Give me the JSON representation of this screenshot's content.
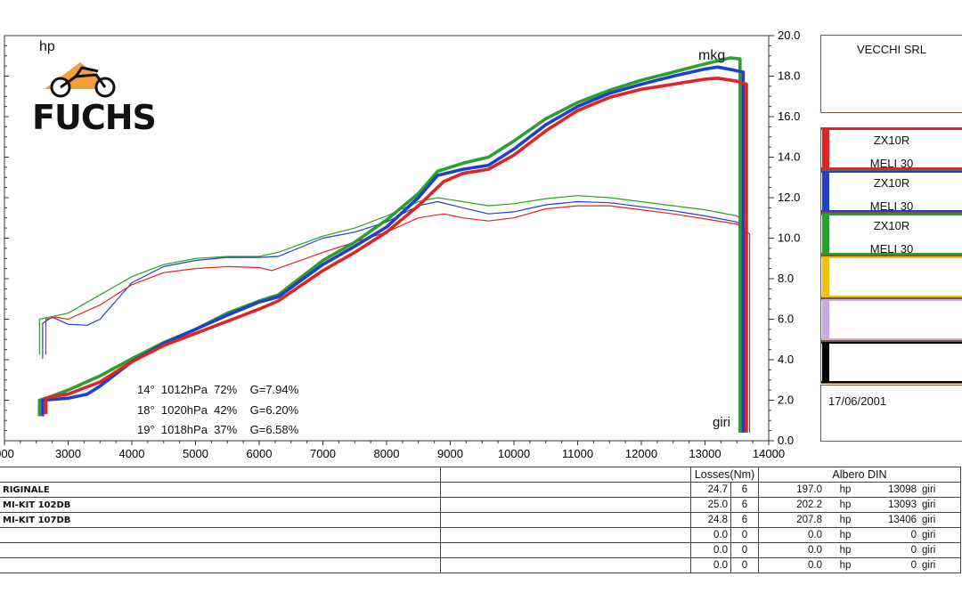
{
  "labels": {
    "left_unit": "hp",
    "right_unit": "mkg",
    "rpm_unit": "giri"
  },
  "logo": {
    "text": "FUCHS"
  },
  "conditions": [
    {
      "text": "14°  1012hPa  72%    G=7.94%",
      "color": "#e02424"
    },
    {
      "text": "18°  1020hPa  42%    G=6.20%",
      "color": "#1f3fd0"
    },
    {
      "text": "19°  1018hPa  37%    G=6.58%",
      "color": "#2aa02a"
    }
  ],
  "legend_panel": {
    "company": "VECCHI SRL",
    "runs": [
      {
        "line1": "ZX10R",
        "line2": "MELI 30",
        "color": "#e02424"
      },
      {
        "line1": "ZX10R",
        "line2": "MELI 30",
        "color": "#1f3fd0"
      },
      {
        "line1": "ZX10R",
        "line2": "MELI 30",
        "color": "#2aa02a"
      },
      {
        "line1": "",
        "line2": "",
        "color": "#f2c200"
      },
      {
        "line1": "",
        "line2": "",
        "color": "#c8a8e8"
      },
      {
        "line1": "",
        "line2": "",
        "color": "#000000"
      }
    ],
    "date": "17/06/2001"
  },
  "results_table": {
    "losses_header": "Losses(Nm)",
    "power_header": "Albero DIN",
    "unit_hp": "hp",
    "unit_rpm": "giri",
    "rows": [
      {
        "name": "RIGINALE",
        "loss": "24.7",
        "n": "6",
        "power": "197.0",
        "rpm": "13098"
      },
      {
        "name": "MI-KIT 102DB",
        "loss": "25.0",
        "n": "6",
        "power": "202.2",
        "rpm": "13093"
      },
      {
        "name": "MI-KIT 107DB",
        "loss": "24.8",
        "n": "6",
        "power": "207.8",
        "rpm": "13406"
      },
      {
        "name": "",
        "loss": "0.0",
        "n": "0",
        "power": "0.0",
        "rpm": "0"
      },
      {
        "name": "",
        "loss": "0.0",
        "n": "0",
        "power": "0.0",
        "rpm": "0"
      },
      {
        "name": "",
        "loss": "0.0",
        "n": "0",
        "power": "0.0",
        "rpm": "0"
      }
    ]
  },
  "chart_data": {
    "type": "line",
    "xlabel": "giri",
    "ylabel_right": "mkg",
    "ylabel_left": "hp",
    "xlim": [
      2000,
      14000
    ],
    "xticks": [
      "000",
      "3000",
      "4000",
      "5000",
      "6000",
      "7000",
      "8000",
      "9000",
      "10000",
      "11000",
      "12000",
      "13000",
      "14000"
    ],
    "ylim_right": [
      0,
      20
    ],
    "yticks_right": [
      "0.0",
      "2.0",
      "4.0",
      "6.0",
      "8.0",
      "10.0",
      "12.0",
      "14.0",
      "16.0",
      "18.0",
      "20.0"
    ],
    "grid": false,
    "series": [
      {
        "quantity": "power",
        "color": "#2aa02a",
        "x": [
          2550,
          2700,
          3000,
          3500,
          4000,
          4500,
          5000,
          5500,
          6000,
          6300,
          7000,
          7500,
          8000,
          8500,
          8800,
          9200,
          9600,
          10000,
          10500,
          11000,
          11500,
          12000,
          12500,
          13000,
          13500,
          13580
        ],
        "y": [
          6.0,
          6.1,
          6.3,
          7.2,
          8.1,
          8.7,
          9.0,
          9.1,
          9.1,
          9.3,
          10.1,
          10.5,
          11.1,
          11.8,
          12.0,
          11.8,
          11.6,
          11.7,
          11.95,
          12.1,
          12.0,
          11.8,
          11.6,
          11.4,
          11.1,
          10.9
        ]
      },
      {
        "quantity": "power",
        "color": "#1f3fd0",
        "x": [
          2600,
          2750,
          3000,
          3300,
          3500,
          4000,
          4500,
          5000,
          5500,
          6000,
          6300,
          7000,
          7500,
          8000,
          8500,
          8800,
          9200,
          9600,
          10000,
          10500,
          11000,
          11500,
          12000,
          12500,
          13000,
          13500,
          13620
        ],
        "y": [
          5.8,
          6.1,
          5.75,
          5.7,
          6.0,
          7.8,
          8.6,
          8.9,
          9.05,
          9.05,
          9.1,
          10.0,
          10.3,
          10.8,
          11.6,
          11.8,
          11.5,
          11.2,
          11.3,
          11.65,
          11.8,
          11.75,
          11.55,
          11.35,
          11.1,
          10.8,
          10.5
        ]
      },
      {
        "quantity": "power",
        "color": "#e02424",
        "x": [
          2650,
          2800,
          3000,
          3500,
          4000,
          4500,
          5000,
          5500,
          6000,
          6200,
          7000,
          7500,
          8000,
          8500,
          8900,
          9200,
          9600,
          10000,
          10500,
          11000,
          11500,
          12000,
          12500,
          13000,
          13500,
          13700
        ],
        "y": [
          6.0,
          6.1,
          6.0,
          6.7,
          7.7,
          8.3,
          8.5,
          8.6,
          8.55,
          8.4,
          9.3,
          9.8,
          10.3,
          11.0,
          11.2,
          11.0,
          10.85,
          11.0,
          11.45,
          11.6,
          11.6,
          11.4,
          11.2,
          10.95,
          10.7,
          10.2
        ]
      },
      {
        "quantity": "torque",
        "color": "#2aa02a",
        "x": [
          2550,
          2700,
          3000,
          3500,
          4000,
          4500,
          5000,
          5500,
          6000,
          6300,
          7000,
          7500,
          8000,
          8500,
          8800,
          9200,
          9600,
          10000,
          10500,
          11000,
          11500,
          12000,
          12500,
          13000,
          13400,
          13550
        ],
        "y": [
          2.0,
          2.15,
          2.5,
          3.2,
          4.05,
          4.85,
          5.5,
          6.3,
          6.9,
          7.2,
          8.9,
          9.8,
          10.9,
          12.2,
          13.3,
          13.7,
          14.0,
          14.8,
          15.9,
          16.7,
          17.3,
          17.8,
          18.2,
          18.6,
          18.9,
          18.85
        ]
      },
      {
        "quantity": "torque",
        "color": "#1f3fd0",
        "x": [
          2600,
          3000,
          3300,
          3500,
          4000,
          4500,
          5000,
          5500,
          6000,
          6300,
          7000,
          7500,
          8000,
          8500,
          8800,
          9200,
          9600,
          10000,
          10500,
          11000,
          11500,
          12000,
          12500,
          13000,
          13200,
          13450,
          13600
        ],
        "y": [
          2.0,
          2.1,
          2.3,
          2.7,
          3.9,
          4.8,
          5.5,
          6.2,
          6.85,
          7.1,
          8.7,
          9.6,
          10.55,
          12.0,
          13.1,
          13.4,
          13.6,
          14.4,
          15.6,
          16.5,
          17.15,
          17.6,
          18.0,
          18.35,
          18.45,
          18.3,
          18.2
        ]
      },
      {
        "quantity": "torque",
        "color": "#e02424",
        "x": [
          2650,
          2800,
          3000,
          3500,
          4000,
          4500,
          5000,
          5500,
          6000,
          6300,
          7000,
          7500,
          8000,
          8500,
          8900,
          9200,
          9600,
          10000,
          10500,
          11000,
          11500,
          12000,
          12500,
          13000,
          13200,
          13500,
          13650
        ],
        "y": [
          2.1,
          2.2,
          2.3,
          2.9,
          3.9,
          4.7,
          5.3,
          5.9,
          6.5,
          6.9,
          8.4,
          9.3,
          10.3,
          11.6,
          12.8,
          13.2,
          13.4,
          14.1,
          15.3,
          16.3,
          16.95,
          17.35,
          17.6,
          17.85,
          17.9,
          17.75,
          17.6
        ]
      }
    ]
  }
}
